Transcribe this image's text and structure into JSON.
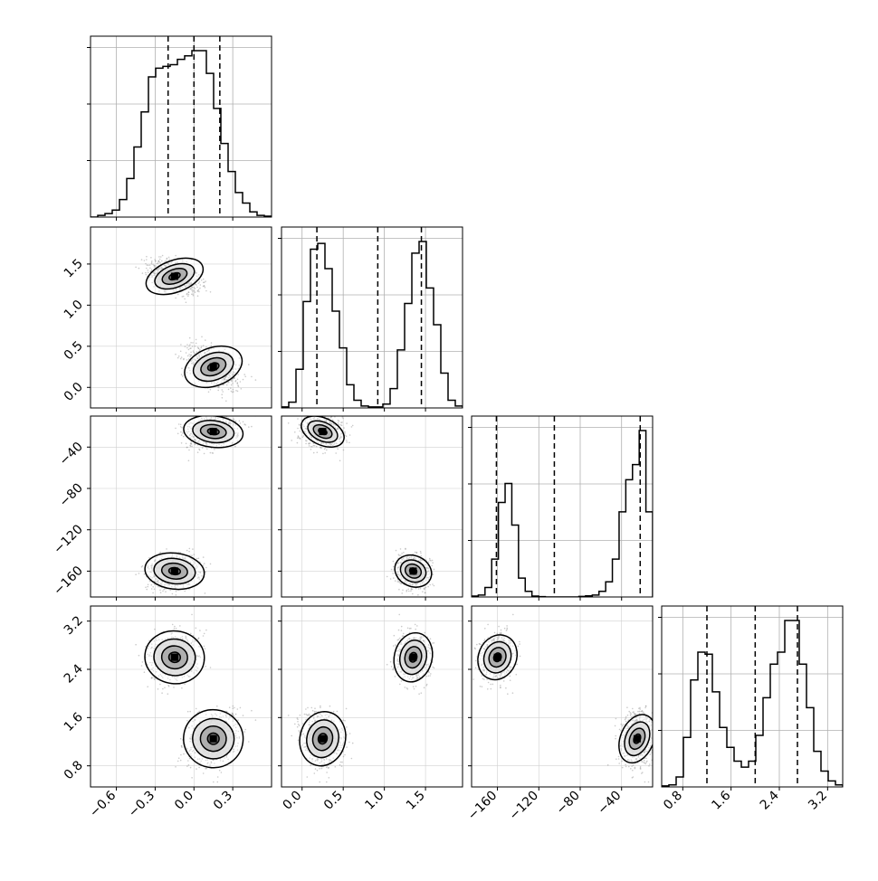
{
  "chart_data": {
    "type": "corner",
    "description_free": true,
    "n_params": 4,
    "grid": true,
    "quantile_lines": "dashed",
    "params": [
      {
        "index": 0,
        "range": [
          -0.8,
          0.6
        ],
        "ticks": [
          -0.6,
          -0.3,
          0.0,
          0.3
        ],
        "tick_labels": [
          "−0.6",
          "−0.3",
          "0.0",
          "0.3"
        ],
        "quantiles": [
          -0.2,
          0.0,
          0.2
        ],
        "hist": [
          0,
          1,
          2,
          4,
          10,
          22,
          40,
          60,
          80,
          85,
          86,
          87,
          90,
          92,
          95,
          95,
          82,
          62,
          42,
          26,
          14,
          8,
          3,
          1,
          0.5
        ]
      },
      {
        "index": 1,
        "range": [
          -0.25,
          1.95
        ],
        "ticks": [
          0.0,
          0.5,
          1.0,
          1.5
        ],
        "tick_labels": [
          "0.0",
          "0.5",
          "1.0",
          "1.5"
        ],
        "quantiles": [
          0.18,
          0.92,
          1.45
        ],
        "hist": [
          0.5,
          3,
          20,
          55,
          82,
          85,
          72,
          50,
          31,
          12,
          4,
          1,
          0.5,
          0.5,
          2,
          10,
          30,
          54,
          80,
          86,
          62,
          43,
          18,
          4,
          1
        ]
      },
      {
        "index": 2,
        "range": [
          -185,
          -10
        ],
        "ticks": [
          -160,
          -120,
          -80,
          -40
        ],
        "tick_labels": [
          "−160",
          "−120",
          "−80",
          "−40"
        ],
        "quantiles": [
          -161,
          -105,
          -22
        ],
        "hist": [
          0.5,
          1,
          5,
          20,
          50,
          60,
          38,
          10,
          3,
          0.5,
          0.2,
          0,
          0,
          0,
          0,
          0,
          0.3,
          0.6,
          1,
          3,
          8,
          20,
          45,
          62,
          70,
          88,
          45
        ]
      },
      {
        "index": 3,
        "range": [
          0.45,
          3.45
        ],
        "ticks": [
          0.8,
          1.6,
          2.4,
          3.2
        ],
        "tick_labels": [
          "0.8",
          "1.6",
          "2.4",
          "3.2"
        ],
        "quantiles": [
          1.2,
          2.0,
          2.7
        ],
        "hist": [
          0.5,
          1,
          5,
          25,
          54,
          68,
          67,
          48,
          30,
          20,
          13,
          10,
          13,
          26,
          45,
          62,
          68,
          84,
          84,
          62,
          40,
          18,
          8,
          3,
          1
        ]
      }
    ],
    "modes": [
      {
        "center": [
          -0.15,
          1.35,
          -160,
          2.6
        ],
        "spread": [
          0.1,
          0.1,
          8,
          0.2
        ],
        "corr": [
          [
            1,
            -0.45
          ],
          [
            1,
            0.2
          ],
          [
            1,
            0.1
          ]
        ]
      },
      {
        "center": [
          0.15,
          0.25,
          -25,
          1.25
        ],
        "spread": [
          0.1,
          0.12,
          7,
          0.22
        ],
        "corr": [
          [
            1,
            -0.5
          ],
          [
            1,
            0.3
          ],
          [
            1,
            0.3
          ]
        ]
      }
    ]
  }
}
